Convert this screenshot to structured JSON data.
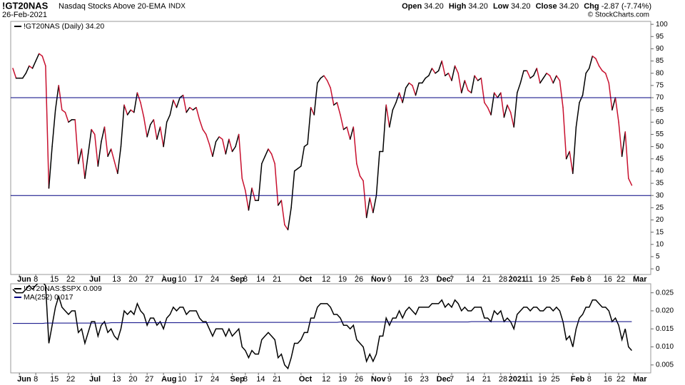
{
  "header": {
    "symbol": "!GT20NAS",
    "name": "Nasdaq Stocks Above 20-EMA",
    "exchange": "INDX",
    "date": "26-Feb-2021",
    "quote": [
      {
        "label": "Open",
        "value": "34.20"
      },
      {
        "label": "High",
        "value": "34.20"
      },
      {
        "label": "Low",
        "value": "34.20"
      },
      {
        "label": "Close",
        "value": "34.20"
      },
      {
        "label": "Chg",
        "value": "-2.87 (-7.74%)"
      }
    ],
    "copyright": "© StockCharts.com"
  },
  "chart_data": [
    {
      "type": "line",
      "categories": [
        null,
        null,
        "Jun",
        null,
        null,
        null,
        null,
        "8",
        null,
        null,
        null,
        null,
        "15",
        null,
        null,
        null,
        null,
        "22",
        null,
        null,
        null,
        null,
        null,
        null,
        "Jul",
        null,
        null,
        null,
        null,
        null,
        null,
        "13",
        null,
        null,
        null,
        null,
        "20",
        null,
        null,
        null,
        null,
        "27",
        null,
        null,
        null,
        null,
        "Aug",
        null,
        null,
        null,
        null,
        "10",
        null,
        null,
        null,
        null,
        "17",
        null,
        null,
        null,
        null,
        "24",
        null,
        null,
        null,
        null,
        null,
        "Sep",
        null,
        null,
        null,
        "8",
        null,
        null,
        null,
        "14",
        null,
        null,
        null,
        null,
        "21",
        null,
        null,
        null,
        null,
        null,
        null,
        null,
        "Oct",
        null,
        null,
        null,
        null,
        null,
        null,
        "12",
        null,
        null,
        null,
        null,
        "19",
        null,
        null,
        null,
        null,
        "26",
        null,
        null,
        null,
        null,
        "Nov",
        null,
        null,
        null,
        null,
        "9",
        null,
        null,
        null,
        null,
        "16",
        null,
        null,
        null,
        null,
        "23",
        null,
        null,
        null,
        null,
        "Dec",
        null,
        null,
        null,
        "7",
        null,
        null,
        null,
        null,
        "14",
        null,
        null,
        null,
        null,
        "21",
        null,
        null,
        null,
        null,
        "28",
        null,
        null,
        "2021",
        null,
        null,
        null,
        null,
        "11",
        null,
        null,
        null,
        "19",
        null,
        null,
        null,
        "25",
        null,
        null,
        null,
        null,
        null,
        "Feb",
        null,
        null,
        null,
        null,
        "8",
        null,
        null,
        null,
        null,
        "16",
        null,
        null,
        null,
        "22",
        null,
        null,
        null,
        null,
        "Mar"
      ],
      "series": [
        {
          "name": "!GT20NAS (Daily) 34.20",
          "color": "#000000",
          "up_color": "#000000",
          "down_color": "#c8102e",
          "values": [
            82,
            78,
            78,
            78,
            80,
            83,
            82,
            85,
            88,
            87,
            83,
            33,
            50,
            65,
            75,
            65,
            64,
            60,
            61,
            61,
            43,
            49,
            37,
            47,
            57,
            55,
            42,
            52,
            58,
            46,
            49,
            44,
            39,
            50,
            67,
            63,
            65,
            64,
            72,
            68,
            62,
            54,
            59,
            61,
            53,
            58,
            50,
            60,
            63,
            69,
            66,
            70,
            71,
            64,
            66,
            65,
            66,
            61,
            57,
            55,
            51,
            46,
            52,
            54,
            53,
            47,
            53,
            48,
            50,
            55,
            37,
            32,
            24,
            33,
            28,
            28,
            43,
            46,
            49,
            47,
            43,
            26,
            28,
            18,
            16,
            25,
            40,
            41,
            42,
            50,
            51,
            66,
            63,
            76,
            78,
            79,
            77,
            74,
            67,
            68,
            63,
            57,
            58,
            53,
            58,
            43,
            38,
            36,
            21,
            29,
            23,
            30,
            48,
            48,
            67,
            58,
            65,
            68,
            72,
            68,
            74,
            76,
            75,
            71,
            76,
            76,
            78,
            79,
            82,
            80,
            81,
            85,
            79,
            80,
            77,
            83,
            80,
            72,
            77,
            73,
            72,
            79,
            77,
            78,
            68,
            66,
            63,
            72,
            70,
            72,
            62,
            67,
            64,
            58,
            72,
            76,
            81,
            81,
            78,
            79,
            82,
            76,
            78,
            80,
            79,
            76,
            79,
            77,
            66,
            45,
            48,
            39,
            58,
            68,
            71,
            80,
            82,
            87,
            86,
            83,
            81,
            80,
            76,
            65,
            70,
            60,
            46,
            56,
            37,
            34.2,
            null
          ]
        }
      ],
      "reference_lines": [
        {
          "value": 70,
          "color": "#000080"
        },
        {
          "value": 30,
          "color": "#000080"
        }
      ],
      "ylim": [
        -2.3,
        101.2
      ],
      "yticks": [
        0,
        5,
        10,
        15,
        20,
        25,
        30,
        35,
        40,
        45,
        50,
        55,
        60,
        65,
        70,
        75,
        80,
        85,
        90,
        95,
        100
      ]
    },
    {
      "type": "line",
      "series": [
        {
          "name": "!GT20NAS:$SPX 0.009",
          "color": "#000000",
          "values": [
            0.026,
            0.025,
            0.025,
            0.025,
            0.026,
            0.027,
            0.026,
            0.027,
            0.028,
            0.028,
            0.027,
            0.011,
            0.016,
            0.021,
            0.024,
            0.021,
            0.02,
            0.019,
            0.02,
            0.02,
            0.014,
            0.015,
            0.011,
            0.014,
            0.017,
            0.017,
            0.013,
            0.016,
            0.017,
            0.014,
            0.015,
            0.013,
            0.012,
            0.015,
            0.02,
            0.019,
            0.02,
            0.019,
            0.022,
            0.02,
            0.019,
            0.016,
            0.018,
            0.018,
            0.016,
            0.017,
            0.015,
            0.018,
            0.019,
            0.021,
            0.02,
            0.021,
            0.021,
            0.019,
            0.02,
            0.02,
            0.02,
            0.018,
            0.017,
            0.017,
            0.015,
            0.013,
            0.015,
            0.015,
            0.015,
            0.013,
            0.015,
            0.013,
            0.014,
            0.015,
            0.01,
            0.009,
            0.007,
            0.009,
            0.008,
            0.008,
            0.012,
            0.013,
            0.014,
            0.013,
            0.012,
            0.007,
            0.008,
            0.005,
            0.004,
            0.007,
            0.011,
            0.011,
            0.012,
            0.014,
            0.014,
            0.018,
            0.018,
            0.021,
            0.022,
            0.022,
            0.022,
            0.021,
            0.019,
            0.019,
            0.018,
            0.016,
            0.016,
            0.015,
            0.016,
            0.012,
            0.011,
            0.01,
            0.006,
            0.008,
            0.006,
            0.008,
            0.013,
            0.013,
            0.018,
            0.016,
            0.018,
            0.018,
            0.02,
            0.018,
            0.02,
            0.021,
            0.02,
            0.019,
            0.021,
            0.021,
            0.021,
            0.021,
            0.022,
            0.022,
            0.022,
            0.023,
            0.021,
            0.022,
            0.021,
            0.023,
            0.022,
            0.02,
            0.021,
            0.02,
            0.02,
            0.021,
            0.021,
            0.021,
            0.018,
            0.018,
            0.017,
            0.02,
            0.019,
            0.02,
            0.017,
            0.018,
            0.017,
            0.015,
            0.019,
            0.02,
            0.021,
            0.021,
            0.02,
            0.021,
            0.021,
            0.02,
            0.02,
            0.021,
            0.021,
            0.02,
            0.021,
            0.02,
            0.017,
            0.012,
            0.013,
            0.01,
            0.015,
            0.018,
            0.019,
            0.021,
            0.021,
            0.023,
            0.023,
            0.022,
            0.021,
            0.021,
            0.02,
            0.017,
            0.018,
            0.016,
            0.012,
            0.015,
            0.01,
            0.009,
            null
          ]
        },
        {
          "name": "MA(252) 0.017",
          "color": "#000080",
          "values": [
            0.0165,
            0.0165,
            0.0165,
            0.0165,
            0.0165,
            0.0165,
            0.0165,
            0.0165,
            0.0165,
            0.0165,
            0.0166,
            0.0166,
            0.0166,
            0.0166,
            0.0166,
            0.0166,
            0.0166,
            0.0166,
            0.0166,
            0.0166,
            0.0166,
            0.0166,
            0.0166,
            0.0166,
            0.0166,
            0.0166,
            0.0166,
            0.0166,
            0.0166,
            0.0166,
            0.0167,
            0.0167,
            0.0167,
            0.0167,
            0.0167,
            0.0167,
            0.0167,
            0.0167,
            0.0167,
            0.0167,
            0.0167,
            0.0167,
            0.0167,
            0.0167,
            0.0167,
            0.0167,
            0.0167,
            0.0167,
            0.0167,
            0.0167,
            0.0167,
            0.0167,
            0.0167,
            0.0167,
            0.0167,
            0.0167,
            0.0167,
            0.0167,
            0.0167,
            0.0167,
            0.0168,
            0.0168,
            0.0168,
            0.0168,
            0.0168,
            0.0168,
            0.0168,
            0.0168,
            0.0168,
            0.0168,
            0.0168,
            0.0168,
            0.0168,
            0.0168,
            0.0168,
            0.0168,
            0.0168,
            0.0168,
            0.0168,
            0.0168,
            0.0168,
            0.0168,
            0.0168,
            0.0168,
            0.0168,
            0.0168,
            0.0168,
            0.0168,
            0.0168,
            0.0168,
            0.0168,
            0.0168,
            0.0168,
            0.0168,
            0.0168,
            0.0168,
            0.0168,
            0.0168,
            0.0168,
            0.0168,
            0.0169,
            0.0169,
            0.0169,
            0.0169,
            0.0169,
            0.0169,
            0.0169,
            0.0169,
            0.0169,
            0.0169,
            0.0169,
            0.0169,
            0.0169,
            0.0169,
            0.0169,
            0.0169,
            0.0169,
            0.0169,
            0.0169,
            0.0169,
            0.0169,
            0.0169,
            0.0169,
            0.0169,
            0.0169,
            0.0169,
            0.0169,
            0.0169,
            0.0169,
            0.0169,
            0.0169,
            0.0169,
            0.0169,
            0.0169,
            0.0169,
            0.0169,
            0.0169,
            0.0169,
            0.0169,
            0.0169,
            0.017,
            0.017,
            0.017,
            0.017,
            0.017,
            0.017,
            0.017,
            0.017,
            0.017,
            0.017,
            0.017,
            0.017,
            0.017,
            0.017,
            0.017,
            0.017,
            0.017,
            0.017,
            0.017,
            0.017,
            0.017,
            0.017,
            0.017,
            0.017,
            0.017,
            0.017,
            0.017,
            0.017,
            0.017,
            0.017,
            0.017,
            0.017,
            0.017,
            0.017,
            0.017,
            0.017,
            0.017,
            0.017,
            0.017,
            0.017,
            0.017,
            0.017,
            0.017,
            0.017,
            0.017,
            0.017,
            0.017,
            0.017,
            0.017,
            0.017,
            null
          ]
        }
      ],
      "ylim": [
        0.0028,
        0.0275
      ],
      "yticks": [
        0.005,
        {
          "value": 0.01,
          "label": "0.010"
        },
        0.015,
        {
          "value": 0.02,
          "label": "0.020"
        },
        0.025
      ]
    }
  ]
}
